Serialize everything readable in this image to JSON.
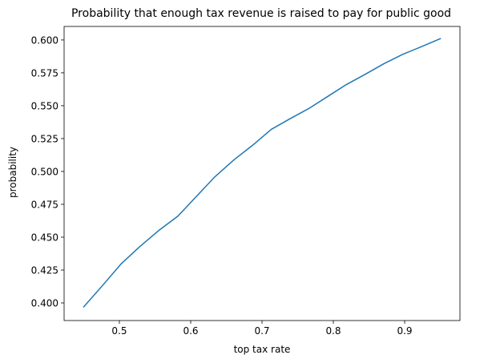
{
  "chart_data": {
    "type": "line",
    "title": "Probability that enough tax revenue is raised to pay for public good",
    "xlabel": "top tax rate",
    "ylabel": "probability",
    "xlim": [
      0.4225,
      0.9775
    ],
    "ylim": [
      0.3866,
      0.6103
    ],
    "xticks": [
      0.5,
      0.6,
      0.7,
      0.8,
      0.9
    ],
    "xtick_labels": [
      "0.5",
      "0.6",
      "0.7",
      "0.8",
      "0.9"
    ],
    "yticks": [
      0.4,
      0.425,
      0.45,
      0.475,
      0.5,
      0.525,
      0.55,
      0.575,
      0.6
    ],
    "ytick_labels": [
      "0.400",
      "0.425",
      "0.450",
      "0.475",
      "0.500",
      "0.525",
      "0.550",
      "0.575",
      "0.600"
    ],
    "grid": false,
    "series": [
      {
        "color": "#1f77b4",
        "x": [
          0.45,
          0.476,
          0.503,
          0.529,
          0.555,
          0.582,
          0.608,
          0.634,
          0.661,
          0.687,
          0.713,
          0.739,
          0.766,
          0.792,
          0.818,
          0.845,
          0.871,
          0.897,
          0.924,
          0.95
        ],
        "y": [
          0.397,
          0.413,
          0.43,
          0.443,
          0.455,
          0.466,
          0.481,
          0.496,
          0.509,
          0.52,
          0.532,
          0.54,
          0.548,
          0.557,
          0.566,
          0.574,
          0.582,
          0.589,
          0.595,
          0.601
        ]
      }
    ]
  }
}
